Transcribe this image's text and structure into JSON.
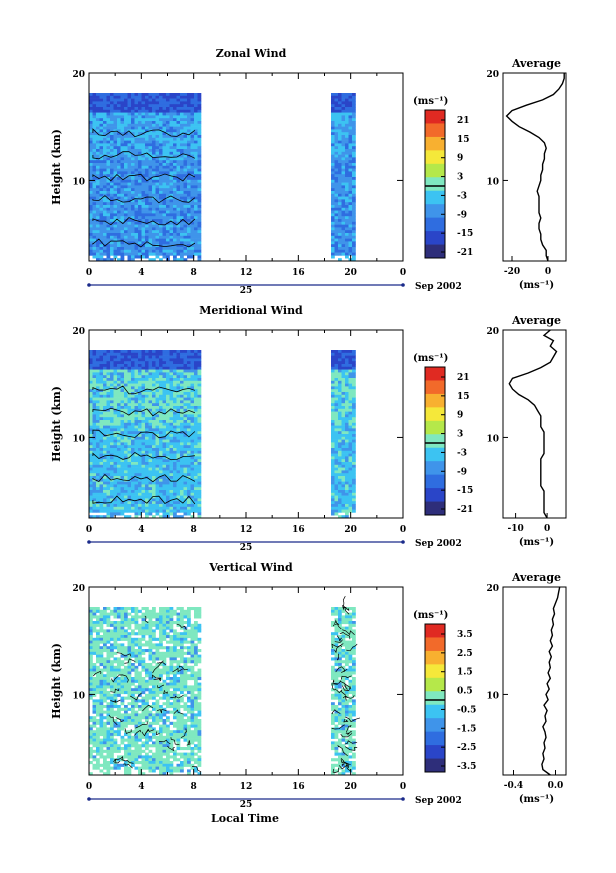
{
  "shared": {
    "month_label": "Sep 2002",
    "day_label": "25",
    "xlabel": "Local Time",
    "x_ticks": [
      "0",
      "4",
      "8",
      "12",
      "16",
      "20",
      "0"
    ],
    "colors": {
      "scale": [
        "#2e2e7a",
        "#2a45c8",
        "#2f6de0",
        "#3f94ea",
        "#3cc3f2",
        "#7fe8c0",
        "#b5e84a",
        "#f5e83a",
        "#f8b030",
        "#f26a2a",
        "#e02a22"
      ]
    }
  },
  "chart_data": [
    {
      "type": "heatmap",
      "id": "zonal",
      "title": "Zonal Wind",
      "ylabel": "Height (km)",
      "y_ticks": [
        "10",
        "20"
      ],
      "xlim": [
        0,
        24
      ],
      "ylim": [
        2.5,
        20
      ],
      "data_segments": [
        [
          0,
          8.5
        ],
        [
          18.5,
          20.3
        ]
      ],
      "colorbar": {
        "unit": "(ms⁻¹)",
        "ticks": [
          "21",
          "15",
          "9",
          "3",
          "-3",
          "-9",
          "-15",
          "-21"
        ],
        "zero_line_after": 4
      },
      "average": {
        "title": "Average",
        "unit": "(ms⁻¹)",
        "x_ticks": [
          "-20",
          "0"
        ],
        "xlim": [
          -25,
          10
        ],
        "y_ticks": [
          "10",
          "20"
        ],
        "profile": [
          [
            2.5,
            0
          ],
          [
            3,
            -1
          ],
          [
            3.5,
            -1
          ],
          [
            4,
            -3
          ],
          [
            4.5,
            -4
          ],
          [
            5,
            -4
          ],
          [
            5.5,
            -5
          ],
          [
            6,
            -5
          ],
          [
            6.5,
            -4
          ],
          [
            7,
            -5
          ],
          [
            7.5,
            -5
          ],
          [
            8,
            -5
          ],
          [
            8.5,
            -5
          ],
          [
            9,
            -6
          ],
          [
            9.5,
            -5
          ],
          [
            10,
            -4
          ],
          [
            10.5,
            -4
          ],
          [
            11,
            -3
          ],
          [
            11.5,
            -3
          ],
          [
            12,
            -2
          ],
          [
            12.5,
            -2
          ],
          [
            13,
            -1
          ],
          [
            13.5,
            -2
          ],
          [
            14,
            -5
          ],
          [
            14.5,
            -10
          ],
          [
            15,
            -16
          ],
          [
            15.5,
            -20
          ],
          [
            16,
            -23
          ],
          [
            16.5,
            -20
          ],
          [
            17,
            -12
          ],
          [
            17.5,
            -3
          ],
          [
            18,
            3
          ],
          [
            18.5,
            6
          ],
          [
            19,
            8
          ],
          [
            19.5,
            9
          ],
          [
            20,
            9
          ]
        ]
      }
    },
    {
      "type": "heatmap",
      "id": "meridional",
      "title": "Meridional Wind",
      "ylabel": "Height (km)",
      "y_ticks": [
        "10",
        "20"
      ],
      "xlim": [
        0,
        24
      ],
      "ylim": [
        2.5,
        20
      ],
      "data_segments": [
        [
          0,
          8.5
        ],
        [
          18.5,
          20.3
        ]
      ],
      "colorbar": {
        "unit": "(ms⁻¹)",
        "ticks": [
          "21",
          "15",
          "9",
          "3",
          "-3",
          "-9",
          "-15",
          "-21"
        ],
        "zero_line_after": 4
      },
      "average": {
        "title": "Average",
        "unit": "(ms⁻¹)",
        "x_ticks": [
          "-10",
          "0"
        ],
        "xlim": [
          -14,
          6
        ],
        "y_ticks": [
          "10",
          "20"
        ],
        "profile": [
          [
            2.5,
            0
          ],
          [
            3,
            -1
          ],
          [
            3.5,
            -1
          ],
          [
            4,
            -1
          ],
          [
            4.5,
            -1
          ],
          [
            5,
            -1
          ],
          [
            5.5,
            -2
          ],
          [
            6,
            -2
          ],
          [
            6.5,
            -2
          ],
          [
            7,
            -2
          ],
          [
            7.5,
            -2
          ],
          [
            8,
            -2
          ],
          [
            8.5,
            -1
          ],
          [
            9,
            -1
          ],
          [
            9.5,
            -1
          ],
          [
            10,
            -1
          ],
          [
            10.5,
            -1
          ],
          [
            11,
            -2
          ],
          [
            11.5,
            -2
          ],
          [
            12,
            -2
          ],
          [
            12.5,
            -3
          ],
          [
            13,
            -4
          ],
          [
            13.5,
            -6
          ],
          [
            14,
            -9
          ],
          [
            14.5,
            -11
          ],
          [
            15,
            -12
          ],
          [
            15.5,
            -11
          ],
          [
            16,
            -6
          ],
          [
            16.5,
            -2
          ],
          [
            17,
            1
          ],
          [
            17.5,
            2
          ],
          [
            18,
            3
          ],
          [
            18.5,
            1
          ],
          [
            19,
            2
          ],
          [
            19.5,
            -1
          ],
          [
            20,
            1
          ]
        ]
      }
    },
    {
      "type": "heatmap",
      "id": "vertical",
      "title": "Vertical Wind",
      "ylabel": "Height (km)",
      "y_ticks": [
        "10",
        "20"
      ],
      "xlim": [
        0,
        24
      ],
      "ylim": [
        2.5,
        20
      ],
      "data_segments": [
        [
          0,
          8.5
        ],
        [
          18.5,
          20.3
        ]
      ],
      "colorbar": {
        "unit": "(ms⁻¹)",
        "ticks": [
          "3.5",
          "2.5",
          "1.5",
          "0.5",
          "-0.5",
          "-1.5",
          "-2.5",
          "-3.5"
        ],
        "zero_line_after": 4
      },
      "average": {
        "title": "Average",
        "unit": "(ms⁻¹)",
        "x_ticks": [
          "-0.4",
          "0.0"
        ],
        "xlim": [
          -0.5,
          0.1
        ],
        "y_ticks": [
          "10",
          "20"
        ],
        "profile": [
          [
            2.5,
            -0.05
          ],
          [
            3,
            -0.12
          ],
          [
            3.5,
            -0.13
          ],
          [
            4,
            -0.11
          ],
          [
            4.5,
            -0.12
          ],
          [
            5,
            -0.1
          ],
          [
            5.5,
            -0.11
          ],
          [
            6,
            -0.09
          ],
          [
            6.5,
            -0.1
          ],
          [
            7,
            -0.12
          ],
          [
            7.5,
            -0.09
          ],
          [
            8,
            -0.1
          ],
          [
            8.5,
            -0.08
          ],
          [
            9,
            -0.11
          ],
          [
            9.5,
            -0.07
          ],
          [
            10,
            -0.09
          ],
          [
            10.5,
            -0.06
          ],
          [
            11,
            -0.08
          ],
          [
            11.5,
            -0.05
          ],
          [
            12,
            -0.07
          ],
          [
            12.5,
            -0.05
          ],
          [
            13,
            -0.06
          ],
          [
            13.5,
            -0.04
          ],
          [
            14,
            -0.06
          ],
          [
            14.5,
            -0.03
          ],
          [
            15,
            -0.05
          ],
          [
            15.5,
            -0.03
          ],
          [
            16,
            -0.04
          ],
          [
            16.5,
            -0.02
          ],
          [
            17,
            -0.03
          ],
          [
            17.5,
            -0.01
          ],
          [
            18,
            -0.02
          ],
          [
            18.5,
            0.0
          ],
          [
            19,
            0.02
          ],
          [
            19.5,
            0.03
          ],
          [
            20,
            0.04
          ]
        ]
      }
    }
  ]
}
